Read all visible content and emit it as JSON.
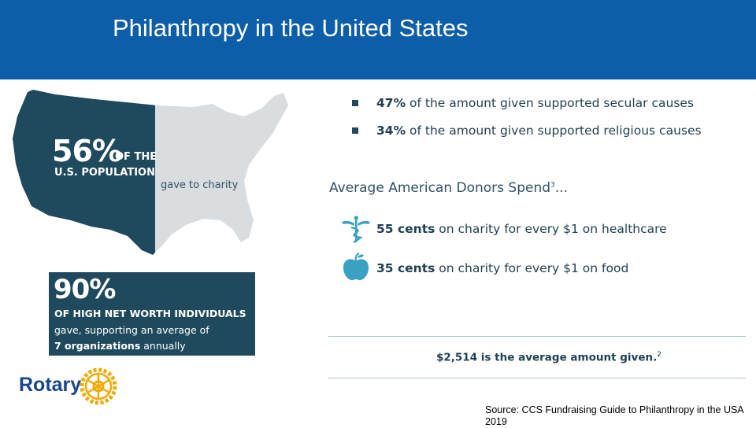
{
  "header": {
    "title": "Philanthropy in the United States"
  },
  "map_stat": {
    "percent": "56%",
    "of_the": "OF THE",
    "population": "U.S. POPULATION",
    "caption": "gave to charity"
  },
  "hnw_stat": {
    "percent": "90%",
    "line1": "OF HIGH NET WORTH INDIVIDUALS",
    "line2": "gave, supporting an average of",
    "line3_bold": "7 organizations",
    "line3_rest": " annually"
  },
  "logo": {
    "text": "Rotary"
  },
  "bullets": [
    {
      "bold": "47%",
      "text": " of the amount given supported secular causes"
    },
    {
      "bold": "34%",
      "text": " of the amount given supported religious causes"
    }
  ],
  "avg_donors": {
    "heading": "Average American Donors Spend",
    "superscript": "3",
    "ellipsis": "..."
  },
  "spend_rows": [
    {
      "icon": "caduceus-icon",
      "bold": "55 cents",
      "text": " on charity for every $1 on healthcare"
    },
    {
      "icon": "apple-icon",
      "bold": "35 cents",
      "text": " on charity for every $1 on food"
    }
  ],
  "average_given": {
    "text": "$2,514 is the average amount given.",
    "superscript": "2"
  },
  "source": {
    "text": "Source: CCS Fundraising Guide to Philanthropy in the USA 2019"
  },
  "colors": {
    "header": "#0d5ea8",
    "dark_teal": "#1f4a5e",
    "map_grey": "#d9dde0",
    "rotary_blue": "#17458f",
    "rotary_gold": "#f2a900"
  }
}
